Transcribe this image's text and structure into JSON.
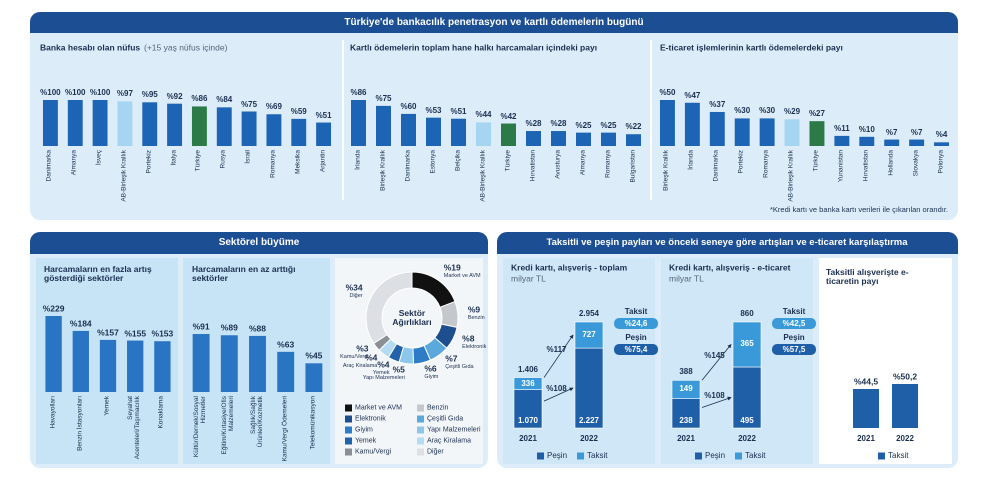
{
  "headers": {
    "top": "Türkiye'de bankacılık penetrasyon ve kartlı ödemelerin bugünü",
    "sector": "Sektörel büyüme",
    "installment": "Taksitli ve peşin payları ve önceki seneye göre artışları ve e-ticaret karşılaştırma"
  },
  "footnote": "*Kredi kartı ve banka kartı verileri ile çıkarılan orandır.",
  "chart_data": [
    {
      "type": "bar",
      "title": "Banka hesabı olan nüfus",
      "subtitle": "(+15 yaş nüfus içinde)",
      "categories": [
        "Danimarka",
        "Almanya",
        "İsveç",
        "AB-Birleşik Krallık",
        "Portekiz",
        "İtalya",
        "Türkiye",
        "Rusya",
        "İsrail",
        "Romanya",
        "Meksika",
        "Arjantin"
      ],
      "values": [
        100,
        100,
        100,
        97,
        95,
        92,
        86,
        84,
        75,
        69,
        59,
        51
      ],
      "value_labels": [
        "%100",
        "%100",
        "%100",
        "%97",
        "%95",
        "%92",
        "%86",
        "%84",
        "%75",
        "%69",
        "%59",
        "%51"
      ],
      "colors": [
        "#1e64b4",
        "#1e64b4",
        "#1e64b4",
        "#a6d5f2",
        "#1e64b4",
        "#1e64b4",
        "#2c7a47",
        "#1e64b4",
        "#1e64b4",
        "#1e64b4",
        "#1e64b4",
        "#1e64b4"
      ]
    },
    {
      "type": "bar",
      "title": "Kartlı ödemelerin toplam hane halkı harcamaları içindeki payı",
      "categories": [
        "İrlanda",
        "Birleşik Krallık",
        "Danimarka",
        "Estonya",
        "Belçika",
        "AB-Birleşik Krallık",
        "Türkiye",
        "Hırvatistan",
        "Avusturya",
        "Almanya",
        "Romanya",
        "Bulgaristan"
      ],
      "values": [
        86,
        75,
        60,
        53,
        51,
        44,
        42,
        28,
        28,
        25,
        25,
        22
      ],
      "value_labels": [
        "%86",
        "%75",
        "%60",
        "%53",
        "%51",
        "%44",
        "%42",
        "%28",
        "%28",
        "%25",
        "%25",
        "%22"
      ],
      "colors": [
        "#1e64b4",
        "#1e64b4",
        "#1e64b4",
        "#1e64b4",
        "#1e64b4",
        "#a6d5f2",
        "#2c7a47",
        "#1e64b4",
        "#1e64b4",
        "#1e64b4",
        "#1e64b4",
        "#1e64b4"
      ]
    },
    {
      "type": "bar",
      "title": "E-ticaret işlemlerinin kartlı ödemelerdeki payı",
      "categories": [
        "Birleşik Krallık",
        "İrlanda",
        "Danimarka",
        "Portekiz",
        "Romanya",
        "AB-Birleşik Krallık",
        "Türkiye",
        "Yunanistan",
        "Hırvatistan",
        "Hollanda",
        "Slovakya",
        "Polonya"
      ],
      "values": [
        50,
        47,
        37,
        30,
        30,
        29,
        27,
        11,
        10,
        7,
        7,
        4
      ],
      "value_labels": [
        "%50",
        "%47",
        "%37",
        "%30",
        "%30",
        "%29",
        "%27",
        "%11",
        "%10",
        "%7",
        "%7",
        "%4"
      ],
      "colors": [
        "#1e64b4",
        "#1e64b4",
        "#1e64b4",
        "#1e64b4",
        "#1e64b4",
        "#a6d5f2",
        "#2c7a47",
        "#1e64b4",
        "#1e64b4",
        "#1e64b4",
        "#1e64b4",
        "#1e64b4"
      ]
    },
    {
      "type": "bar",
      "title": "Harcamaların en fazla artış gösterdiği sektörler",
      "categories": [
        "Havayolları",
        "Benzin İstasyonları",
        "Yemek",
        "Seyahat Acenteleri/Taşımacılık",
        "Konaklama"
      ],
      "values": [
        229,
        184,
        157,
        155,
        153
      ],
      "value_labels": [
        "%229",
        "%184",
        "%157",
        "%155",
        "%153"
      ],
      "color": "#2a74c4"
    },
    {
      "type": "bar",
      "title": "Harcamaların en az arttığı sektörler",
      "categories": [
        "Kültür/Dernek/Sosyal Hizmetler",
        "Eğitim/Kırtasiye/Ofis Malzemeleri",
        "Sağlık/Sağlık Ürünleri/Kozmetik",
        "Kamu/Vergi Ödemeleri",
        "Telekomünikasyon"
      ],
      "values": [
        91,
        89,
        88,
        63,
        45
      ],
      "value_labels": [
        "%91",
        "%89",
        "%88",
        "%63",
        "%45"
      ],
      "color": "#2a74c4"
    },
    {
      "type": "pie",
      "donut": true,
      "title": "Sektör Ağırlıkları",
      "categories": [
        "Market ve AVM",
        "Benzin",
        "Elektronik",
        "Çeşitli Gıda",
        "Giyim",
        "Yapı Malzemeleri",
        "Yemek",
        "Araç Kiralama",
        "Kamu/Vergi",
        "Diğer"
      ],
      "values": [
        19,
        9,
        8,
        7,
        6,
        5,
        4,
        4,
        3,
        34
      ],
      "value_labels": [
        "%19",
        "%9",
        "%8",
        "%7",
        "%6",
        "%5",
        "%4",
        "%4",
        "%3",
        "%34"
      ],
      "colors": [
        "#111111",
        "#c4c8cc",
        "#1d4f8e",
        "#5aa8dc",
        "#2f7cc6",
        "#8cc6ea",
        "#2262a8",
        "#b3dbf3",
        "#8a8f96",
        "#dcdfe3"
      ]
    },
    {
      "type": "stacked_bar",
      "title": "Kredi kartı, alışveriş - toplam",
      "subtitle": "milyar TL",
      "categories": [
        "2021",
        "2022"
      ],
      "series": [
        {
          "name": "Peşin",
          "color": "#1f5fa8",
          "values": [
            1070,
            2227
          ],
          "value_labels": [
            "1.070",
            "2.227"
          ]
        },
        {
          "name": "Taksit",
          "color": "#3a9ad9",
          "values": [
            336,
            727
          ]
        }
      ],
      "totals": [
        {
          "value": 1406,
          "label": "1.406"
        },
        {
          "value": 2954,
          "label": "2.954"
        }
      ],
      "growth": [
        {
          "value": 108,
          "label": "%108"
        },
        {
          "value": 117,
          "label": "%117"
        }
      ],
      "shares": [
        {
          "name": "Taksit",
          "value": 24.6,
          "label": "%24,6"
        },
        {
          "name": "Peşin",
          "value": 75.4,
          "label": "%75,4"
        }
      ]
    },
    {
      "type": "stacked_bar",
      "title": "Kredi kartı, alışveriş - e-ticaret",
      "subtitle": "milyar TL",
      "categories": [
        "2021",
        "2022"
      ],
      "series": [
        {
          "name": "Peşin",
          "color": "#1f5fa8",
          "values": [
            238,
            495
          ]
        },
        {
          "name": "Taksit",
          "color": "#3a9ad9",
          "values": [
            149,
            365
          ]
        }
      ],
      "totals": [
        388,
        860
      ],
      "growth": [
        {
          "value": 108,
          "label": "%108"
        },
        {
          "value": 145,
          "label": "%145"
        }
      ],
      "shares": [
        {
          "name": "Taksit",
          "value": 42.5,
          "label": "%42,5"
        },
        {
          "name": "Peşin",
          "value": 57.5,
          "label": "%57,5"
        }
      ]
    },
    {
      "type": "bar",
      "title": "Taksitli alışverişte e-ticaretin payı",
      "categories": [
        "2021",
        "2022"
      ],
      "series": [
        {
          "name": "Taksit",
          "color": "#1f5fa8",
          "values": [
            44.5,
            50.2
          ],
          "value_labels": [
            "%44,5",
            "%50,2"
          ]
        }
      ]
    }
  ]
}
